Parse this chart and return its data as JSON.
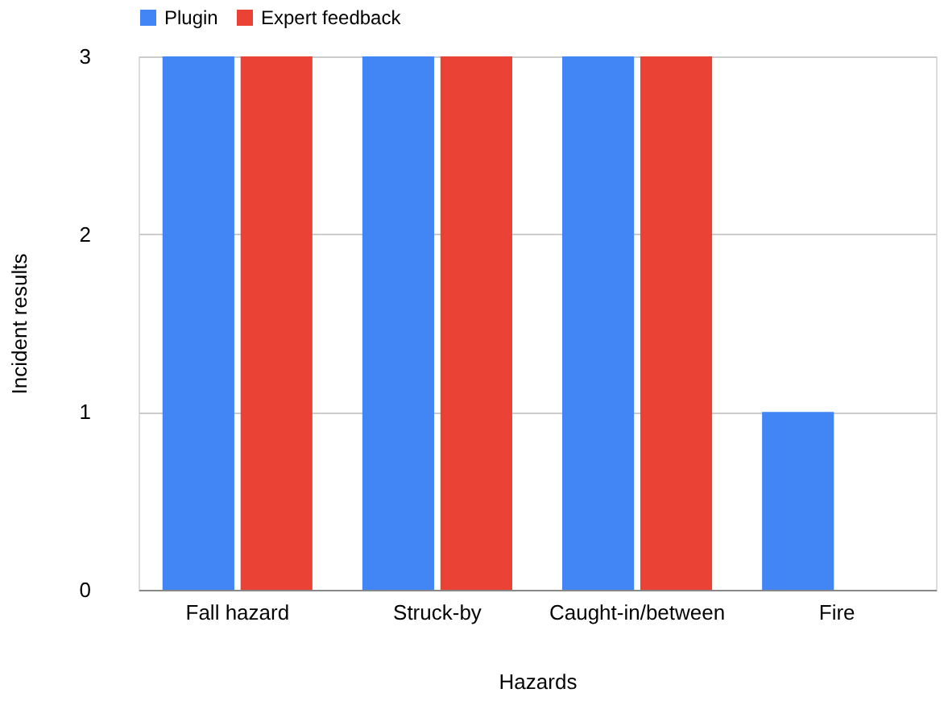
{
  "chart_data": {
    "type": "bar",
    "xlabel": "Hazards",
    "ylabel": "Incident results",
    "categories": [
      "Fall hazard",
      "Struck-by",
      "Caught-in/between",
      "Fire"
    ],
    "series": [
      {
        "name": "Plugin",
        "color": "#4285f4",
        "values": [
          3,
          3,
          3,
          1
        ]
      },
      {
        "name": "Expert feedback",
        "color": "#ea4335",
        "values": [
          3,
          3,
          3,
          0
        ]
      }
    ],
    "ylim": [
      0,
      3
    ],
    "yticks": [
      0,
      1,
      2,
      3
    ],
    "grid": "y",
    "legend": "top"
  }
}
